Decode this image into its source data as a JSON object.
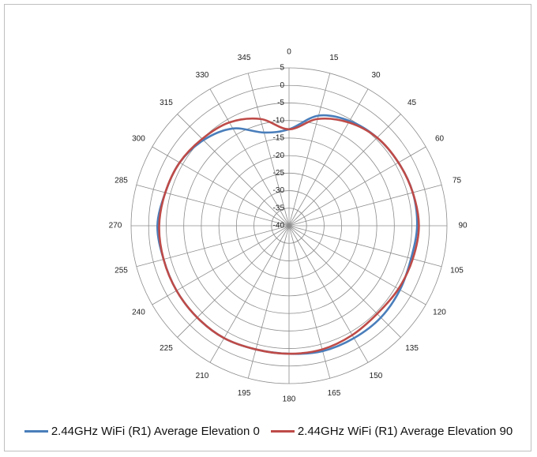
{
  "chart_data": {
    "type": "radar",
    "title": "",
    "angle_unit": "degrees",
    "angles": [
      0,
      15,
      30,
      45,
      60,
      75,
      90,
      105,
      120,
      135,
      150,
      165,
      180,
      195,
      210,
      225,
      240,
      255,
      270,
      285,
      300,
      315,
      330,
      345
    ],
    "angle_tick_labels": [
      "0",
      "15",
      "30",
      "45",
      "60",
      "75",
      "90",
      "105",
      "120",
      "135",
      "150",
      "165",
      "180",
      "195",
      "210",
      "225",
      "240",
      "255",
      "270",
      "285",
      "300",
      "315",
      "330",
      "345"
    ],
    "radial_range": [
      -40,
      5
    ],
    "radial_ticks": [
      5,
      0,
      -5,
      -10,
      -15,
      -20,
      -25,
      -30,
      -35,
      -40
    ],
    "radial_tick_labels": [
      "5",
      "0",
      "-5",
      "-10",
      "-15",
      "-20",
      "-25",
      "-30",
      "-35",
      "-40"
    ],
    "grid": true,
    "legend_position": "bottom",
    "series": [
      {
        "name": "2.44GHz WiFi (R1) Average Elevation 0",
        "color": "#4a7ebb",
        "values": [
          -12.5,
          -7.5,
          -5.5,
          -4.5,
          -4.0,
          -3.5,
          -3.5,
          -4.0,
          -3.5,
          -3.0,
          -3.0,
          -3.0,
          -3.5,
          -3.5,
          -3.0,
          -3.0,
          -3.0,
          -3.0,
          -2.5,
          -3.5,
          -4.0,
          -5.5,
          -8.0,
          -12.5
        ]
      },
      {
        "name": "2.44GHz WiFi (R1) Average Elevation 90",
        "color": "#be4b48",
        "values": [
          -12.5,
          -8.5,
          -6.0,
          -4.5,
          -4.0,
          -3.5,
          -3.0,
          -3.5,
          -4.0,
          -4.5,
          -4.0,
          -3.5,
          -3.5,
          -3.5,
          -3.0,
          -3.0,
          -3.0,
          -3.0,
          -3.0,
          -3.5,
          -4.0,
          -5.0,
          -6.0,
          -8.5
        ]
      }
    ]
  }
}
